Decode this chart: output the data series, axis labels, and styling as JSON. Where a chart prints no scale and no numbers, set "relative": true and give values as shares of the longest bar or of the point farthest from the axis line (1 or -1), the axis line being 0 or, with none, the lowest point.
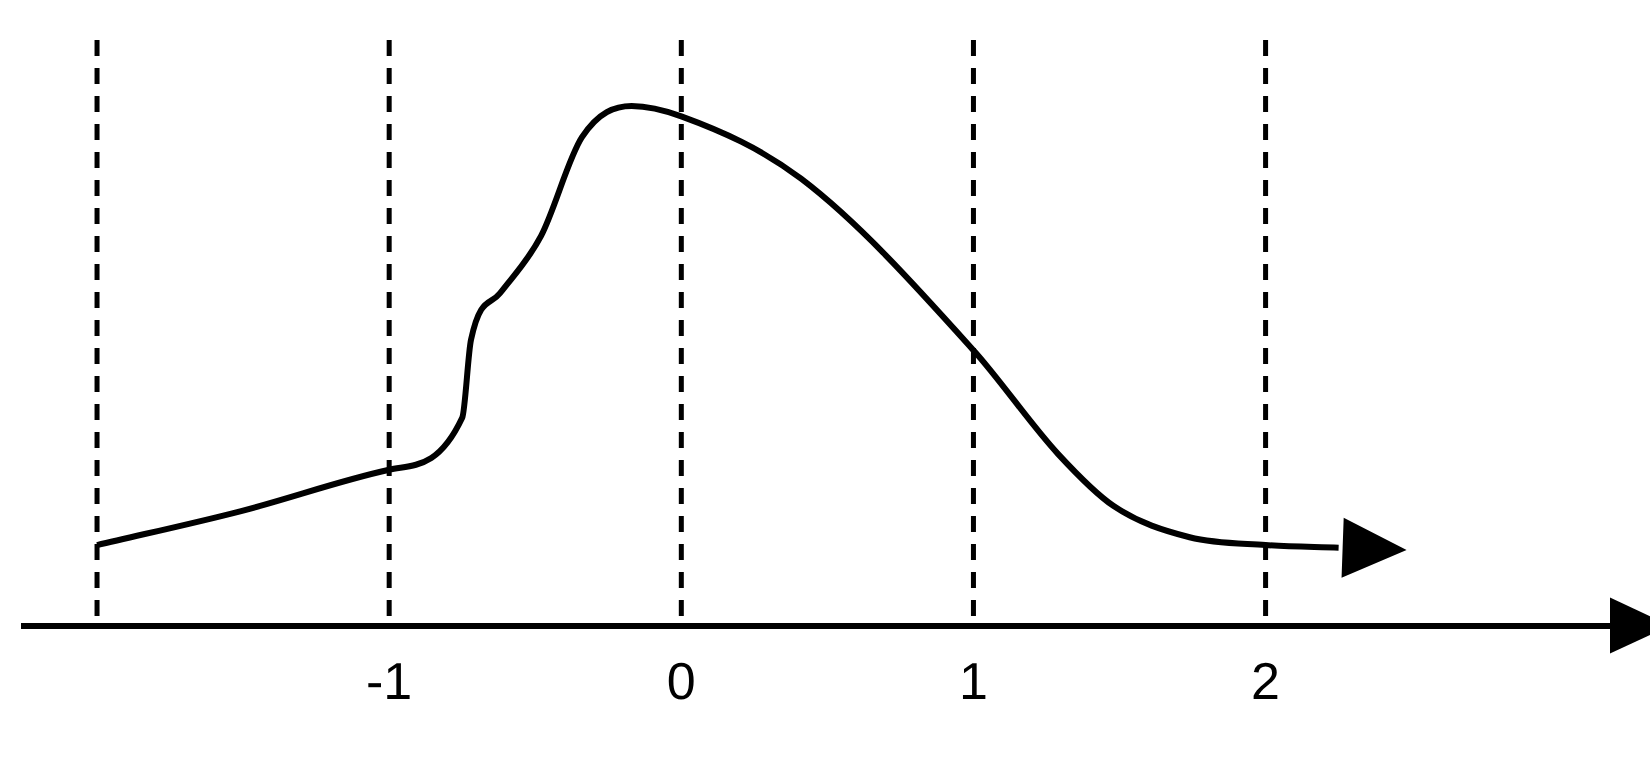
{
  "chart_data": {
    "type": "line",
    "relative": true,
    "x": [
      -2,
      -1.51,
      -1,
      -0.75,
      -0.72,
      -0.62,
      -0.48,
      -0.34,
      -0.17,
      0,
      0.41,
      1,
      1.29,
      1.48,
      1.74,
      2,
      2.25
    ],
    "values": [
      0.155,
      0.22,
      0.3,
      0.4,
      0.55,
      0.64,
      0.75,
      0.94,
      1,
      0.98,
      0.86,
      0.53,
      0.33,
      0.23,
      0.17,
      0.155,
      0.15
    ],
    "color": "#000000",
    "xlim": [
      -2.25,
      3.22
    ],
    "xticks": [
      -1,
      0,
      1,
      2
    ],
    "ref_lines": [
      {
        "axis": "x",
        "value": -2,
        "line_style": "dashed",
        "color": "#000000"
      },
      {
        "axis": "x",
        "value": -1,
        "line_style": "dashed",
        "color": "#000000"
      },
      {
        "axis": "x",
        "value": 0,
        "line_style": "dashed",
        "color": "#000000"
      },
      {
        "axis": "x",
        "value": 1,
        "line_style": "dashed",
        "color": "#000000"
      },
      {
        "axis": "x",
        "value": 2,
        "line_style": "dashed",
        "color": "#000000"
      }
    ],
    "grid": false,
    "legend": false,
    "marker": "none",
    "line_style": "solid",
    "tick_labels": "x"
  }
}
